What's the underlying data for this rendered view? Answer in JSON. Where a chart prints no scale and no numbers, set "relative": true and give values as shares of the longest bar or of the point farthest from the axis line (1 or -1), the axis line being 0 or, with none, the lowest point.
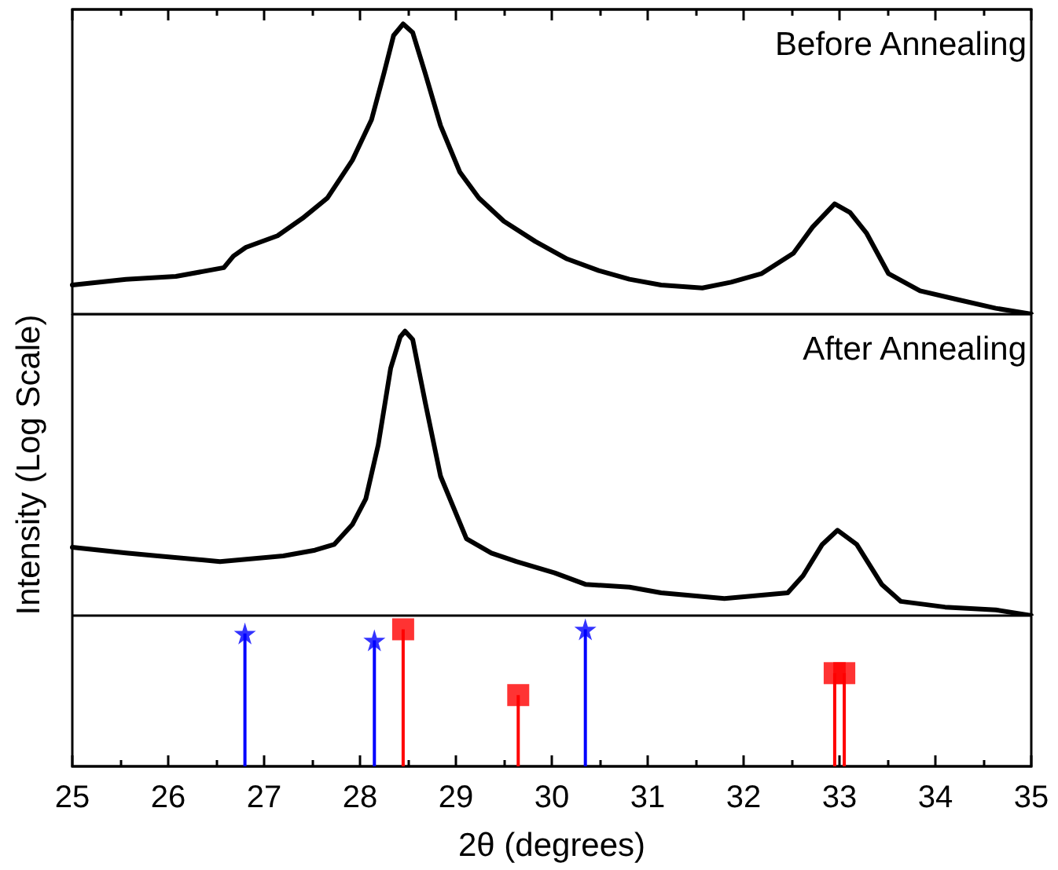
{
  "chart_data": [
    {
      "type": "line",
      "relative": true,
      "xlim": [
        25,
        35
      ],
      "xticks": [
        25,
        26,
        27,
        28,
        29,
        30,
        31,
        32,
        33,
        34,
        35
      ],
      "tick_labels": false,
      "annotations": [
        "Before Annealing"
      ],
      "marker": "none",
      "series": [
        {
          "color": "#000000",
          "x": [
            25.0,
            25.56,
            26.08,
            26.58,
            26.68,
            26.81,
            27.14,
            27.4,
            27.66,
            27.92,
            28.12,
            28.25,
            28.35,
            28.45,
            28.55,
            28.68,
            28.84,
            29.04,
            29.24,
            29.5,
            29.83,
            30.16,
            30.49,
            30.81,
            31.14,
            31.57,
            31.87,
            32.19,
            32.52,
            32.72,
            32.95,
            33.11,
            33.28,
            33.51,
            33.84,
            34.23,
            34.63,
            35.0
          ],
          "values": [
            0.1,
            0.12,
            0.13,
            0.16,
            0.2,
            0.23,
            0.27,
            0.33,
            0.4,
            0.53,
            0.67,
            0.83,
            0.96,
            1,
            0.97,
            0.83,
            0.65,
            0.49,
            0.4,
            0.32,
            0.25,
            0.19,
            0.15,
            0.12,
            0.1,
            0.09,
            0.11,
            0.14,
            0.21,
            0.3,
            0.38,
            0.35,
            0.28,
            0.14,
            0.08,
            0.05,
            0.02,
            0
          ]
        }
      ]
    },
    {
      "type": "line",
      "relative": true,
      "xlim": [
        25,
        35
      ],
      "tick_labels": false,
      "ylabel": "Intensity (Log Scale)",
      "annotations": [
        "After Annealing"
      ],
      "marker": "none",
      "series": [
        {
          "color": "#000000",
          "x": [
            25,
            25.56,
            25.89,
            26.54,
            27.2,
            27.53,
            27.73,
            27.92,
            28.06,
            28.19,
            28.32,
            28.42,
            28.47,
            28.55,
            28.68,
            28.84,
            29.11,
            29.37,
            29.63,
            30.03,
            30.35,
            30.81,
            31.14,
            31.8,
            32.46,
            32.62,
            32.82,
            32.98,
            33.18,
            33.44,
            33.64,
            34.1,
            34.63,
            35
          ],
          "values": [
            0.24,
            0.22,
            0.21,
            0.19,
            0.21,
            0.23,
            0.25,
            0.32,
            0.41,
            0.6,
            0.87,
            0.98,
            1,
            0.97,
            0.75,
            0.49,
            0.27,
            0.22,
            0.19,
            0.15,
            0.11,
            0.1,
            0.08,
            0.06,
            0.08,
            0.14,
            0.25,
            0.3,
            0.25,
            0.11,
            0.05,
            0.03,
            0.02,
            0
          ]
        }
      ]
    },
    {
      "type": "lollipop",
      "relative": true,
      "xlim": [
        25,
        35
      ],
      "xticks": [
        25,
        26,
        27,
        28,
        29,
        30,
        31,
        32,
        33,
        34,
        35
      ],
      "tick_labels": "x",
      "xlabel": "2θ (degrees)",
      "series": [
        {
          "color": "#0000ff",
          "marker": "star",
          "x": [
            26.8,
            28.15,
            30.35
          ],
          "values": [
            0.97,
            0.92,
            1
          ]
        },
        {
          "color": "#ff0000",
          "marker": "square",
          "x": [
            28.45,
            29.65,
            32.95,
            33.05
          ],
          "values": [
            1,
            0.52,
            0.68,
            0.68
          ]
        }
      ]
    }
  ]
}
